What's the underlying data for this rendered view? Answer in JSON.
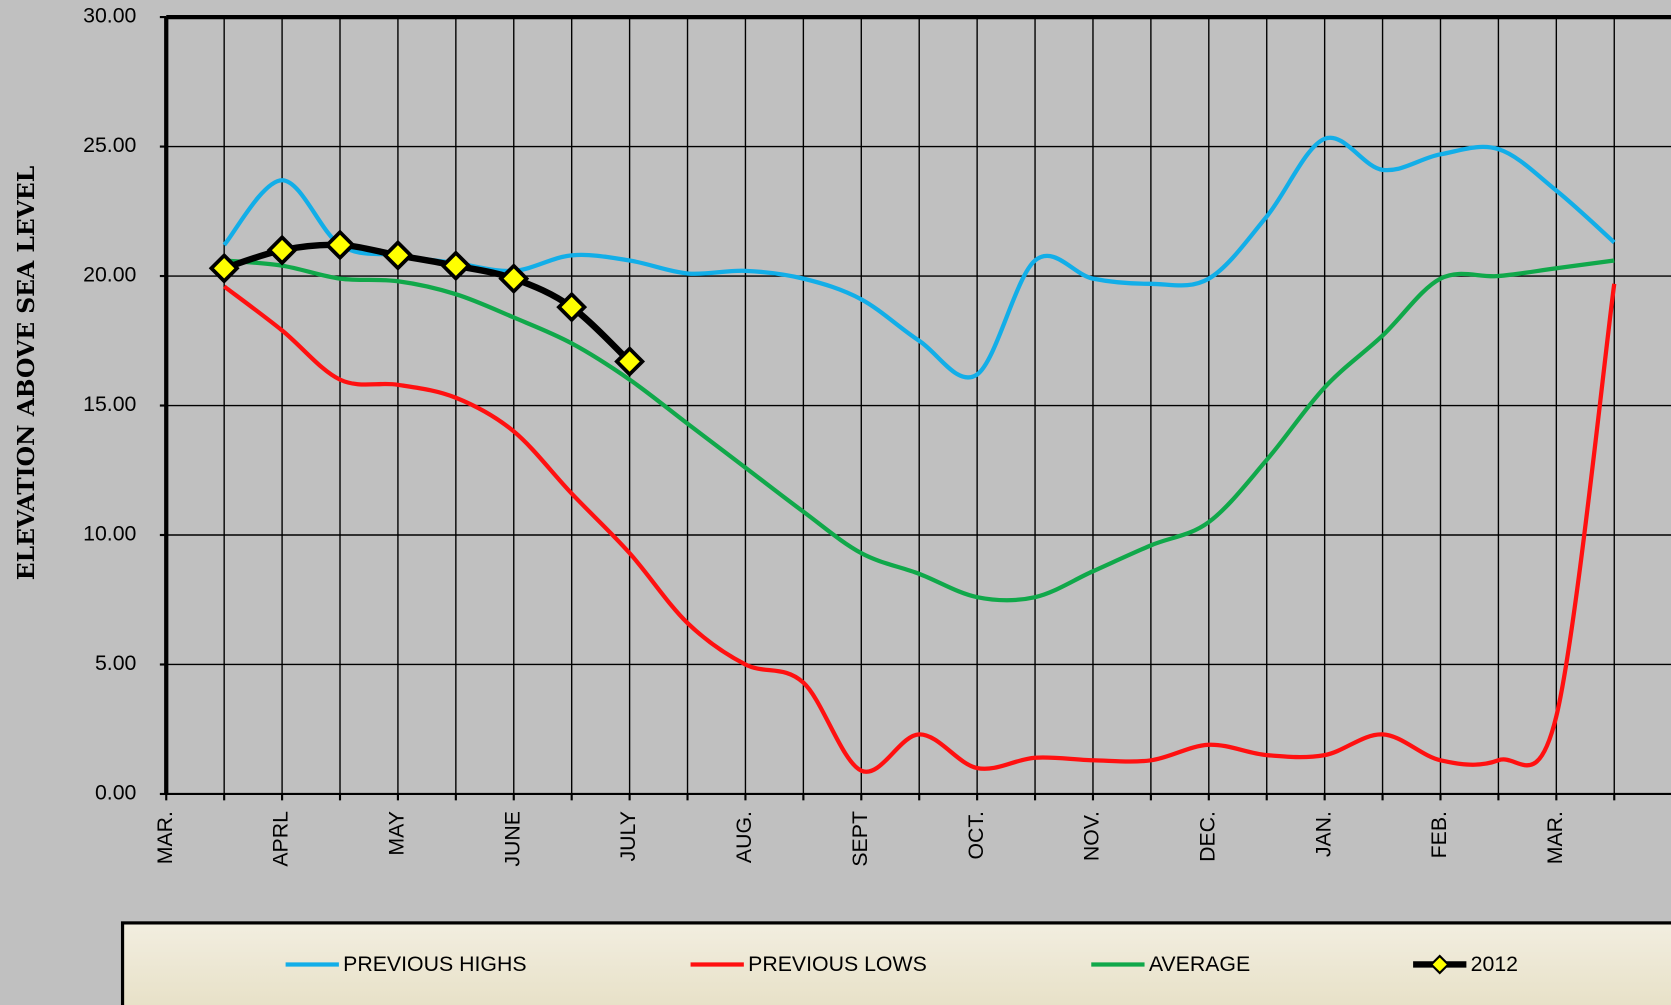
{
  "chart_data": {
    "type": "line",
    "y_label": "ELEVATION  ABOVE  SEA  LEVEL",
    "categories": [
      "MAR.",
      null,
      "APRL",
      null,
      "MAY",
      null,
      "JUNE",
      null,
      "JULY",
      null,
      "AUG.",
      null,
      "SEPT",
      null,
      "OCT.",
      null,
      "NOV.",
      null,
      "DEC.",
      null,
      "JAN.",
      null,
      "FEB.",
      null,
      "MAR.",
      null,
      null
    ],
    "ylim": [
      0,
      30
    ],
    "yticks": [
      {
        "value": 0,
        "label": "0.00"
      },
      {
        "value": 5,
        "label": "5.00"
      },
      {
        "value": 10,
        "label": "10.00"
      },
      {
        "value": 15,
        "label": "15.00"
      },
      {
        "value": 20,
        "label": "20.00"
      },
      {
        "value": 25,
        "label": "25.00"
      },
      {
        "value": 30,
        "label": "30.00"
      }
    ],
    "grid": true,
    "legend": "bottom",
    "series": [
      {
        "name": "PREVIOUS HIGHS",
        "color": "#12aee8",
        "smooth": true,
        "values": [
          null,
          21.2,
          23.7,
          21.2,
          20.8,
          20.5,
          20.2,
          20.8,
          20.6,
          20.1,
          20.2,
          19.9,
          19.1,
          17.5,
          16.2,
          20.6,
          19.9,
          19.7,
          19.9,
          22.3,
          25.3,
          24.1,
          24.7,
          24.9,
          23.3,
          21.3,
          null
        ]
      },
      {
        "name": "PREVIOUS LOWS",
        "color": "#ff1010",
        "smooth": true,
        "values": [
          null,
          19.6,
          17.9,
          16.0,
          15.8,
          15.3,
          14.0,
          11.6,
          9.3,
          6.6,
          5.0,
          4.3,
          0.9,
          2.3,
          1.0,
          1.4,
          1.3,
          1.3,
          1.9,
          1.5,
          1.5,
          2.3,
          1.3,
          1.3,
          3.0,
          19.7,
          null
        ]
      },
      {
        "name": "AVERAGE",
        "color": "#10a84a",
        "smooth": true,
        "values": [
          null,
          20.6,
          20.4,
          19.9,
          19.8,
          19.3,
          18.4,
          17.4,
          16.0,
          14.3,
          12.6,
          10.9,
          9.3,
          8.5,
          7.6,
          7.6,
          8.6,
          9.6,
          10.5,
          12.9,
          15.7,
          17.7,
          19.9,
          20.0,
          20.3,
          20.6,
          null
        ]
      },
      {
        "name": "2012",
        "color": "#000000",
        "marker_color": "#ffff00",
        "markers": true,
        "smooth": true,
        "values": [
          null,
          20.3,
          21.0,
          21.2,
          20.8,
          20.4,
          19.9,
          18.8,
          16.7,
          null,
          null,
          null,
          null,
          null,
          null,
          null,
          null,
          null,
          null,
          null,
          null,
          null,
          null,
          null,
          null,
          null,
          null
        ]
      }
    ]
  }
}
